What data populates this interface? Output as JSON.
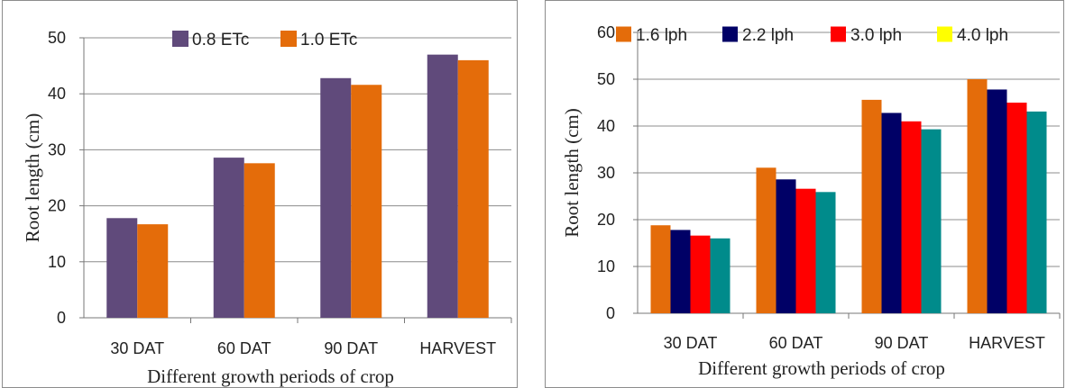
{
  "chart_data": [
    {
      "type": "bar",
      "title": "",
      "xlabel": "Different growth periods of crop",
      "ylabel": "Root length (cm)",
      "ylim": [
        0,
        50
      ],
      "yticks": [
        0,
        10,
        20,
        30,
        40,
        50
      ],
      "grid": true,
      "legend_position": "top",
      "categories": [
        "30 DAT",
        "60 DAT",
        "90 DAT",
        "HARVEST"
      ],
      "series": [
        {
          "name": "0.8 ETc",
          "color": "#604a7b",
          "values": [
            17.8,
            28.6,
            42.8,
            47.0
          ]
        },
        {
          "name": "1.0 ETc",
          "color": "#e46c0a",
          "values": [
            16.7,
            27.6,
            41.6,
            46.0
          ]
        }
      ]
    },
    {
      "type": "bar",
      "title": "",
      "xlabel": "Different growth periods of crop",
      "ylabel": "Root length (cm)",
      "ylim": [
        0,
        60
      ],
      "yticks": [
        0,
        10,
        20,
        30,
        40,
        50,
        60
      ],
      "grid": true,
      "legend_position": "top",
      "categories": [
        "30 DAT",
        "60 DAT",
        "90 DAT",
        "HARVEST"
      ],
      "series": [
        {
          "name": "1.6 lph",
          "color": "#e46c0a",
          "values": [
            18.8,
            31.1,
            45.6,
            50.0
          ]
        },
        {
          "name": "2.2 lph",
          "color": "#000066",
          "values": [
            17.8,
            28.6,
            42.8,
            47.8
          ]
        },
        {
          "name": "3.0 lph",
          "color": "#ff0000",
          "values": [
            16.6,
            26.6,
            41.0,
            45.0
          ]
        },
        {
          "name": "4.0 lph",
          "color": "#ffff00",
          "values": [
            null,
            null,
            null,
            null
          ]
        },
        {
          "name": "",
          "color": "#008b8b",
          "values": [
            16.0,
            25.9,
            39.3,
            43.1
          ]
        }
      ]
    }
  ]
}
